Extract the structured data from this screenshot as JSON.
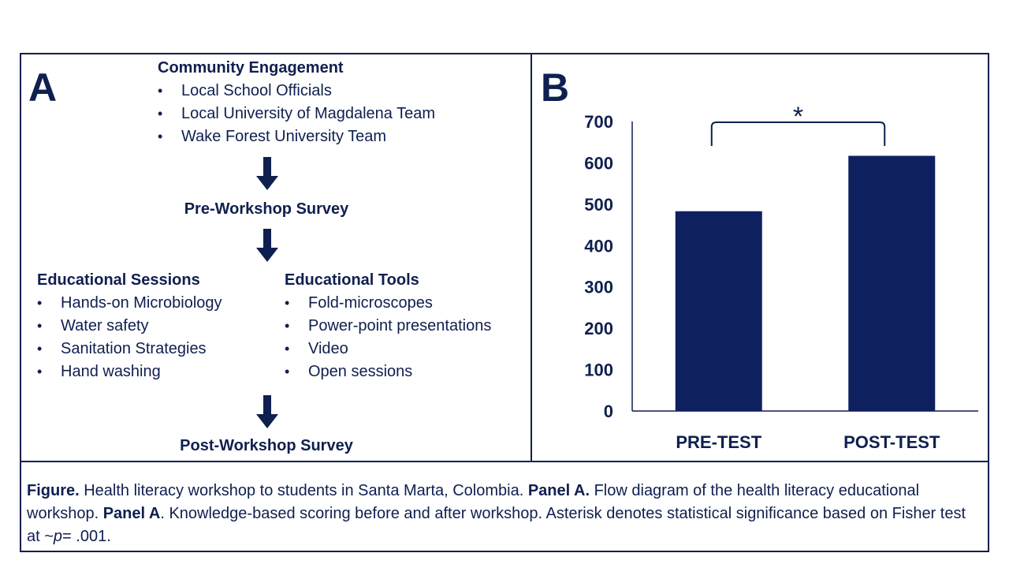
{
  "panel_a": {
    "letter": "A",
    "community": {
      "title": "Community Engagement",
      "items": [
        "Local School Officials",
        "Local University of Magdalena Team",
        "Wake Forest University Team"
      ]
    },
    "pre_survey": "Pre-Workshop Survey",
    "sessions": {
      "title": "Educational Sessions",
      "items": [
        "Hands-on Microbiology",
        "Water safety",
        "Sanitation Strategies",
        "Hand washing"
      ]
    },
    "tools": {
      "title": "Educational Tools",
      "items": [
        "Fold-microscopes",
        "Power-point presentations",
        "Video",
        "Open sessions"
      ]
    },
    "post_survey": "Post-Workshop Survey"
  },
  "panel_b": {
    "letter": "B"
  },
  "chart_data": {
    "type": "bar",
    "categories": [
      "PRE-TEST",
      "POST-TEST"
    ],
    "values": [
      483,
      617
    ],
    "ylim": [
      0,
      700
    ],
    "yticks": [
      0,
      100,
      200,
      300,
      400,
      500,
      600,
      700
    ],
    "significance_marker": "*",
    "grid": false,
    "bar_color": "#0f2060",
    "title": "",
    "xlabel": "",
    "ylabel": ""
  },
  "caption": {
    "figure_label": "Figure.",
    "text1": " Health literacy workshop to students in Santa Marta, Colombia. ",
    "panel_a_label": "Panel A.",
    "text2": " Flow diagram of the health literacy educational workshop. ",
    "panel_a_label2": "Panel A",
    "text3": ". Knowledge-based scoring before and after workshop. Asterisk denotes statistical significance based on Fisher test at ~",
    "p_symbol": "p",
    "text4": "= .001."
  },
  "colors": {
    "navy": "#0f1f4f",
    "bar": "#0f2060"
  }
}
